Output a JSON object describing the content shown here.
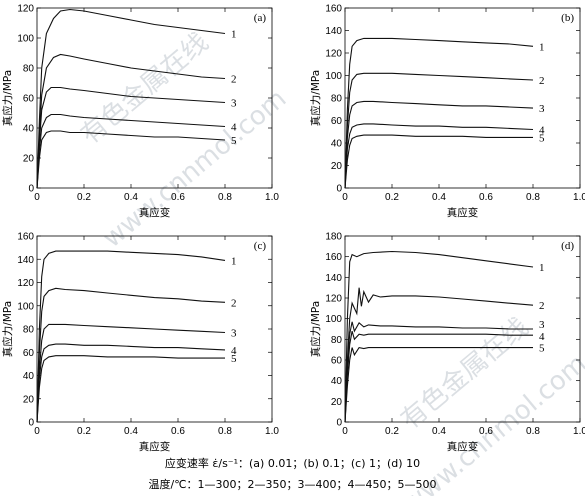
{
  "chart_data": [
    {
      "type": "line",
      "panel": "(a)",
      "xlabel": "真应变",
      "ylabel": "真应力/MPa",
      "xlim": [
        0,
        1.0
      ],
      "ylim": [
        0,
        120
      ],
      "xticks": [
        "0",
        "0.2",
        "0.4",
        "0.6",
        "0.8",
        "1.0"
      ],
      "yticks": [
        "0",
        "20",
        "40",
        "60",
        "80",
        "100",
        "120"
      ],
      "series": [
        {
          "name": "1",
          "x": [
            0,
            0.01,
            0.02,
            0.04,
            0.07,
            0.1,
            0.14,
            0.2,
            0.3,
            0.4,
            0.5,
            0.6,
            0.7,
            0.8
          ],
          "y": [
            0,
            45,
            80,
            103,
            113,
            118,
            119,
            118,
            115,
            112,
            109,
            107,
            105,
            103
          ]
        },
        {
          "name": "2",
          "x": [
            0,
            0.01,
            0.02,
            0.04,
            0.07,
            0.1,
            0.14,
            0.2,
            0.3,
            0.4,
            0.5,
            0.6,
            0.7,
            0.8
          ],
          "y": [
            0,
            35,
            62,
            80,
            87,
            89,
            88,
            86,
            83,
            80,
            78,
            76,
            74,
            73
          ]
        },
        {
          "name": "3",
          "x": [
            0,
            0.01,
            0.02,
            0.04,
            0.06,
            0.1,
            0.14,
            0.2,
            0.3,
            0.4,
            0.5,
            0.6,
            0.7,
            0.8
          ],
          "y": [
            0,
            30,
            52,
            64,
            67,
            67,
            66,
            65,
            63,
            61,
            60,
            59,
            58,
            57
          ]
        },
        {
          "name": "4",
          "x": [
            0,
            0.01,
            0.02,
            0.04,
            0.06,
            0.1,
            0.14,
            0.2,
            0.3,
            0.4,
            0.5,
            0.6,
            0.7,
            0.8
          ],
          "y": [
            0,
            25,
            40,
            47,
            49,
            49,
            48,
            47,
            46,
            45,
            44,
            43,
            42,
            41
          ]
        },
        {
          "name": "5",
          "x": [
            0,
            0.01,
            0.02,
            0.04,
            0.06,
            0.1,
            0.14,
            0.2,
            0.3,
            0.4,
            0.5,
            0.6,
            0.7,
            0.8
          ],
          "y": [
            0,
            20,
            32,
            37,
            38,
            38,
            37,
            37,
            36,
            35,
            34,
            34,
            33,
            32
          ]
        }
      ]
    },
    {
      "type": "line",
      "panel": "(b)",
      "xlabel": "真应变",
      "ylabel": "真应力/MPa",
      "xlim": [
        0,
        1.0
      ],
      "ylim": [
        0,
        160
      ],
      "xticks": [
        "0",
        "0.2",
        "0.4",
        "0.6",
        "0.8",
        "1.0"
      ],
      "yticks": [
        "0",
        "20",
        "40",
        "60",
        "80",
        "100",
        "120",
        "140",
        "160"
      ],
      "series": [
        {
          "name": "1",
          "x": [
            0,
            0.01,
            0.02,
            0.03,
            0.05,
            0.08,
            0.12,
            0.2,
            0.3,
            0.4,
            0.5,
            0.6,
            0.7,
            0.8
          ],
          "y": [
            0,
            70,
            110,
            126,
            131,
            133,
            133,
            133,
            132,
            131,
            130,
            129,
            128,
            126
          ]
        },
        {
          "name": "2",
          "x": [
            0,
            0.01,
            0.02,
            0.03,
            0.05,
            0.08,
            0.12,
            0.2,
            0.3,
            0.4,
            0.5,
            0.6,
            0.7,
            0.8
          ],
          "y": [
            0,
            55,
            85,
            96,
            101,
            102,
            102,
            102,
            101,
            100,
            99,
            98,
            97,
            96
          ]
        },
        {
          "name": "3",
          "x": [
            0,
            0.01,
            0.02,
            0.03,
            0.05,
            0.08,
            0.12,
            0.2,
            0.3,
            0.4,
            0.5,
            0.6,
            0.7,
            0.8
          ],
          "y": [
            0,
            45,
            65,
            73,
            76,
            77,
            77,
            76,
            75,
            74,
            73,
            73,
            72,
            71
          ]
        },
        {
          "name": "4",
          "x": [
            0,
            0.01,
            0.02,
            0.03,
            0.05,
            0.08,
            0.12,
            0.2,
            0.3,
            0.4,
            0.5,
            0.6,
            0.7,
            0.8
          ],
          "y": [
            0,
            35,
            48,
            54,
            56,
            57,
            57,
            56,
            55,
            55,
            54,
            54,
            53,
            52
          ]
        },
        {
          "name": "5",
          "x": [
            0,
            0.01,
            0.02,
            0.03,
            0.05,
            0.08,
            0.12,
            0.2,
            0.3,
            0.4,
            0.5,
            0.6,
            0.7,
            0.8
          ],
          "y": [
            0,
            25,
            38,
            44,
            46,
            47,
            47,
            47,
            46,
            46,
            46,
            45,
            45,
            45
          ]
        }
      ]
    },
    {
      "type": "line",
      "panel": "(c)",
      "xlabel": "真应变",
      "ylabel": "真应力/MPa",
      "xlim": [
        0,
        1.0
      ],
      "ylim": [
        0,
        160
      ],
      "xticks": [
        "0",
        "0.2",
        "0.4",
        "0.6",
        "0.8",
        "1.0"
      ],
      "yticks": [
        "0",
        "20",
        "40",
        "60",
        "80",
        "100",
        "120",
        "140",
        "160"
      ],
      "series": [
        {
          "name": "1",
          "x": [
            0,
            0.01,
            0.02,
            0.03,
            0.05,
            0.08,
            0.12,
            0.2,
            0.3,
            0.4,
            0.5,
            0.6,
            0.7,
            0.8
          ],
          "y": [
            0,
            80,
            125,
            140,
            145,
            147,
            147,
            147,
            147,
            146,
            145,
            144,
            142,
            139
          ]
        },
        {
          "name": "2",
          "x": [
            0,
            0.01,
            0.02,
            0.03,
            0.05,
            0.08,
            0.12,
            0.2,
            0.3,
            0.4,
            0.5,
            0.6,
            0.7,
            0.8
          ],
          "y": [
            0,
            60,
            95,
            108,
            113,
            115,
            114,
            113,
            111,
            109,
            107,
            106,
            104,
            103
          ]
        },
        {
          "name": "3",
          "x": [
            0,
            0.01,
            0.02,
            0.03,
            0.05,
            0.08,
            0.12,
            0.2,
            0.3,
            0.4,
            0.5,
            0.6,
            0.7,
            0.8
          ],
          "y": [
            0,
            45,
            70,
            80,
            84,
            84,
            84,
            83,
            82,
            81,
            80,
            79,
            78,
            77
          ]
        },
        {
          "name": "4",
          "x": [
            0,
            0.01,
            0.02,
            0.03,
            0.05,
            0.08,
            0.12,
            0.2,
            0.3,
            0.4,
            0.5,
            0.6,
            0.7,
            0.8
          ],
          "y": [
            0,
            38,
            56,
            63,
            66,
            67,
            67,
            66,
            66,
            65,
            64,
            64,
            63,
            62
          ]
        },
        {
          "name": "5",
          "x": [
            0,
            0.01,
            0.02,
            0.03,
            0.05,
            0.08,
            0.12,
            0.2,
            0.3,
            0.4,
            0.5,
            0.6,
            0.7,
            0.8
          ],
          "y": [
            0,
            30,
            46,
            53,
            56,
            57,
            57,
            57,
            56,
            56,
            56,
            55,
            55,
            55
          ]
        }
      ]
    },
    {
      "type": "line",
      "panel": "(d)",
      "xlabel": "真应变",
      "ylabel": "真应力/MPa",
      "xlim": [
        0,
        1.0
      ],
      "ylim": [
        0,
        180
      ],
      "xticks": [
        "0",
        "0.2",
        "0.4",
        "0.6",
        "0.8",
        "1.0"
      ],
      "yticks": [
        "0",
        "20",
        "40",
        "60",
        "80",
        "100",
        "120",
        "140",
        "160",
        "180"
      ],
      "series": [
        {
          "name": "1",
          "x": [
            0,
            0.01,
            0.02,
            0.03,
            0.05,
            0.08,
            0.12,
            0.2,
            0.3,
            0.4,
            0.5,
            0.6,
            0.7,
            0.8
          ],
          "y": [
            0,
            100,
            155,
            162,
            160,
            163,
            164,
            165,
            164,
            162,
            159,
            156,
            153,
            150
          ]
        },
        {
          "name": "2",
          "x": [
            0,
            0.01,
            0.02,
            0.03,
            0.05,
            0.06,
            0.07,
            0.08,
            0.1,
            0.12,
            0.15,
            0.2,
            0.3,
            0.4,
            0.5,
            0.6,
            0.7,
            0.8
          ],
          "y": [
            0,
            60,
            100,
            115,
            105,
            130,
            112,
            126,
            116,
            123,
            121,
            122,
            122,
            121,
            119,
            117,
            115,
            113
          ]
        },
        {
          "name": "3",
          "x": [
            0,
            0.01,
            0.02,
            0.03,
            0.04,
            0.06,
            0.08,
            0.1,
            0.15,
            0.2,
            0.3,
            0.4,
            0.5,
            0.6,
            0.7,
            0.8
          ],
          "y": [
            0,
            55,
            85,
            97,
            88,
            96,
            92,
            94,
            93,
            93,
            92,
            92,
            91,
            91,
            90,
            90
          ]
        },
        {
          "name": "4",
          "x": [
            0,
            0.01,
            0.02,
            0.03,
            0.04,
            0.06,
            0.08,
            0.1,
            0.15,
            0.2,
            0.3,
            0.4,
            0.5,
            0.6,
            0.7,
            0.8
          ],
          "y": [
            0,
            45,
            75,
            88,
            80,
            85,
            84,
            85,
            85,
            85,
            85,
            85,
            85,
            85,
            84,
            84
          ]
        },
        {
          "name": "5",
          "x": [
            0,
            0.01,
            0.02,
            0.03,
            0.04,
            0.06,
            0.08,
            0.1,
            0.15,
            0.2,
            0.3,
            0.4,
            0.5,
            0.6,
            0.7,
            0.8
          ],
          "y": [
            0,
            35,
            60,
            72,
            65,
            72,
            71,
            72,
            72,
            72,
            72,
            72,
            72,
            72,
            72,
            72
          ]
        }
      ]
    }
  ],
  "caption": {
    "line1": "应变速率 ε̇/s⁻¹：(a) 0.01；(b) 0.1；(c) 1；(d) 10",
    "line2": "温度/℃：1—300；2—350；3—400；4—450；5—500"
  },
  "watermark": {
    "text1": "有色金属在线",
    "text2": "www.cnnmol.com"
  }
}
